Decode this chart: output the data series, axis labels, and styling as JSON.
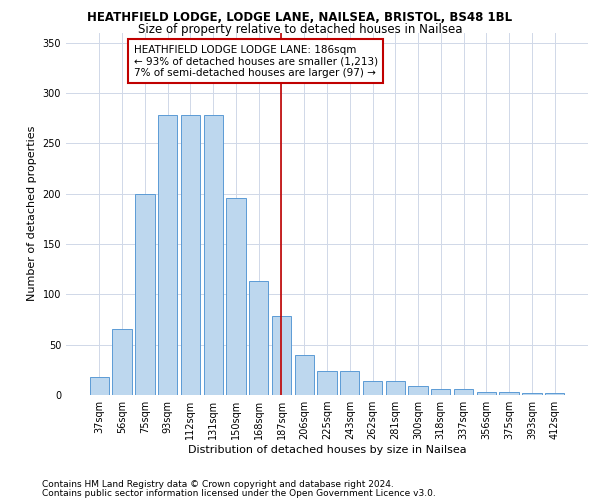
{
  "title": "HEATHFIELD LODGE, LODGE LANE, NAILSEA, BRISTOL, BS48 1BL",
  "subtitle": "Size of property relative to detached houses in Nailsea",
  "xlabel": "Distribution of detached houses by size in Nailsea",
  "ylabel": "Number of detached properties",
  "categories": [
    "37sqm",
    "56sqm",
    "75sqm",
    "93sqm",
    "112sqm",
    "131sqm",
    "150sqm",
    "168sqm",
    "187sqm",
    "206sqm",
    "225sqm",
    "243sqm",
    "262sqm",
    "281sqm",
    "300sqm",
    "318sqm",
    "337sqm",
    "356sqm",
    "375sqm",
    "393sqm",
    "412sqm"
  ],
  "values": [
    18,
    66,
    200,
    278,
    278,
    278,
    196,
    113,
    78,
    40,
    24,
    24,
    14,
    14,
    9,
    6,
    6,
    3,
    3,
    2,
    2
  ],
  "bar_color": "#BDD7EE",
  "bar_edge_color": "#5B9BD5",
  "vline_x": 8,
  "vline_color": "#C00000",
  "annotation_text": "HEATHFIELD LODGE LODGE LANE: 186sqm\n← 93% of detached houses are smaller (1,213)\n7% of semi-detached houses are larger (97) →",
  "annotation_box_color": "#C00000",
  "ylim": [
    0,
    360
  ],
  "yticks": [
    0,
    50,
    100,
    150,
    200,
    250,
    300,
    350
  ],
  "grid_color": "#D0D8E8",
  "background_color": "#FFFFFF",
  "footer_line1": "Contains HM Land Registry data © Crown copyright and database right 2024.",
  "footer_line2": "Contains public sector information licensed under the Open Government Licence v3.0.",
  "title_fontsize": 8.5,
  "subtitle_fontsize": 8.5,
  "xlabel_fontsize": 8,
  "ylabel_fontsize": 8,
  "tick_fontsize": 7,
  "annotation_fontsize": 7.5,
  "footer_fontsize": 6.5
}
